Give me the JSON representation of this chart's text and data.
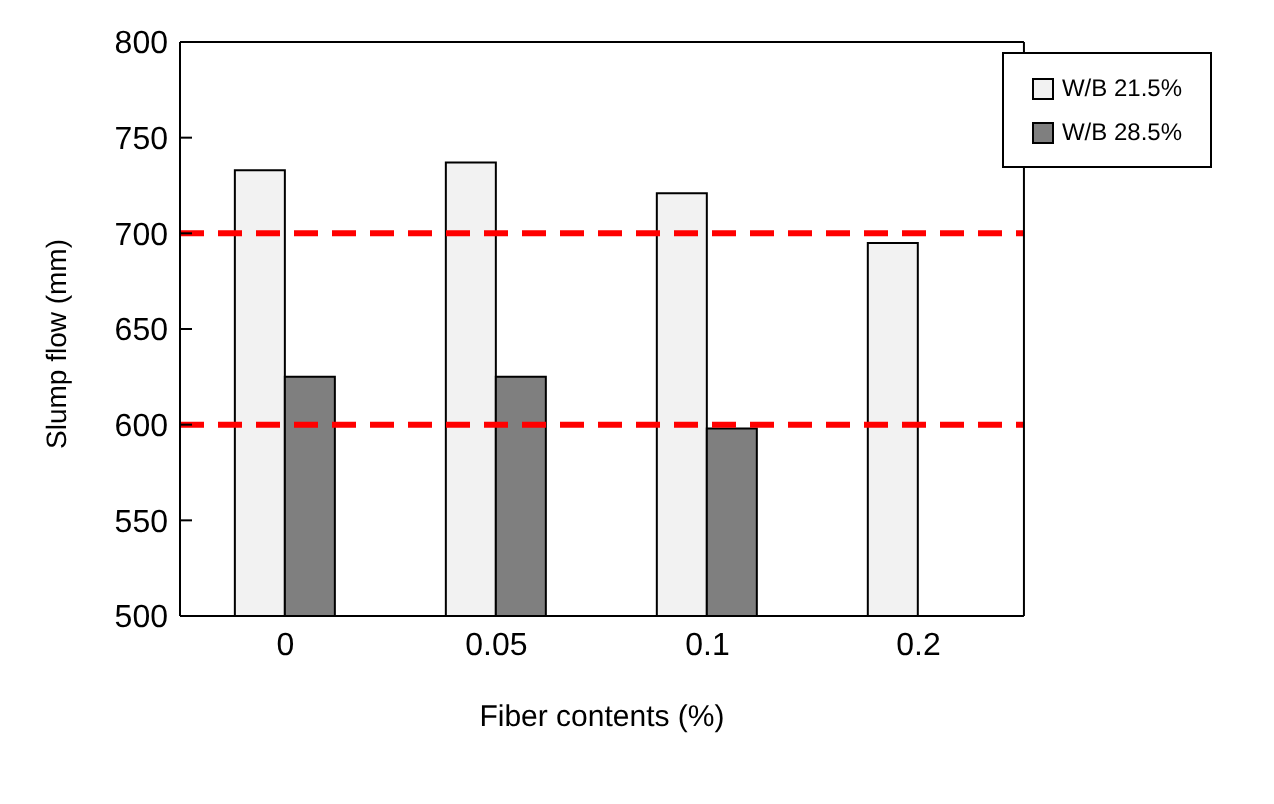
{
  "chart_data": {
    "type": "bar",
    "xlabel": "Fiber contents (%)",
    "ylabel": "Slump flow (mm)",
    "categories": [
      "0",
      "0.05",
      "0.1",
      "0.2"
    ],
    "series": [
      {
        "name": "W/B 21.5%",
        "color": "#f2f2f2",
        "values": [
          733,
          737,
          721,
          695
        ]
      },
      {
        "name": "W/B 28.5%",
        "color": "#7f7f7f",
        "values": [
          625,
          625,
          598,
          null
        ]
      }
    ],
    "ylim": [
      500,
      800
    ],
    "yticks": [
      500,
      550,
      600,
      650,
      700,
      750,
      800
    ],
    "grid": false,
    "legend": "top right",
    "ref_lines": [
      {
        "axis": "y",
        "value": 700,
        "color": "#ff0000",
        "line_style": "dashed"
      },
      {
        "axis": "y",
        "value": 600,
        "color": "#ff0000",
        "line_style": "dashed"
      }
    ]
  }
}
